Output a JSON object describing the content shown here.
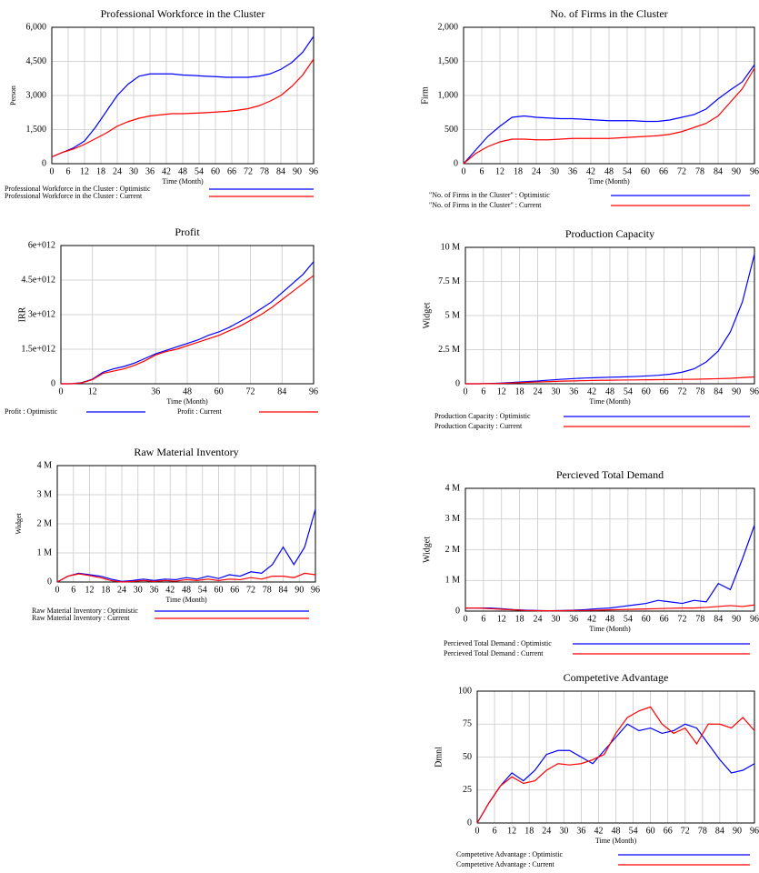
{
  "chart_data": [
    {
      "type": "line",
      "title": "Professional Workforce in the Cluster",
      "x_label": "Time (Month)",
      "y_label": "Person",
      "x": [
        0,
        4,
        8,
        12,
        16,
        20,
        24,
        28,
        32,
        36,
        40,
        44,
        48,
        52,
        56,
        60,
        64,
        68,
        72,
        76,
        80,
        84,
        88,
        92,
        96
      ],
      "xlim": [
        0,
        96
      ],
      "xticks": [
        0,
        6,
        12,
        18,
        24,
        30,
        36,
        42,
        48,
        54,
        60,
        66,
        72,
        78,
        84,
        90,
        96
      ],
      "ylim": [
        0,
        6000
      ],
      "yticks": [
        0,
        {
          "value": 1500,
          "label": "1,500"
        },
        {
          "value": 3000,
          "label": "3,000"
        },
        {
          "value": 4500,
          "label": "4,500"
        },
        {
          "value": 6000,
          "label": "6,000"
        }
      ],
      "grid": true,
      "series": [
        {
          "name": "Professional Workforce in the Cluster : Optimistic",
          "color": "#0000ff",
          "values": [
            300,
            500,
            700,
            1000,
            1600,
            2300,
            3000,
            3500,
            3850,
            3950,
            3950,
            3950,
            3900,
            3880,
            3850,
            3830,
            3800,
            3800,
            3800,
            3850,
            3950,
            4150,
            4450,
            4900,
            5600
          ]
        },
        {
          "name": "Professional Workforce in the Cluster : Current",
          "color": "#ff0000",
          "values": [
            300,
            500,
            650,
            850,
            1100,
            1350,
            1650,
            1850,
            2000,
            2100,
            2150,
            2200,
            2200,
            2220,
            2240,
            2270,
            2300,
            2350,
            2420,
            2550,
            2750,
            3000,
            3400,
            3900,
            4600
          ]
        }
      ]
    },
    {
      "type": "line",
      "title": "No. of Firms in the Cluster",
      "x_label": "Time (Month)",
      "y_label": "Firm",
      "x": [
        0,
        4,
        8,
        12,
        16,
        20,
        24,
        28,
        32,
        36,
        40,
        44,
        48,
        52,
        56,
        60,
        64,
        68,
        72,
        76,
        80,
        84,
        88,
        92,
        96
      ],
      "xlim": [
        0,
        96
      ],
      "xticks": [
        0,
        6,
        12,
        18,
        24,
        30,
        36,
        42,
        48,
        54,
        60,
        66,
        72,
        78,
        84,
        90,
        96
      ],
      "ylim": [
        0,
        2000
      ],
      "yticks": [
        0,
        500,
        {
          "value": 1000,
          "label": "1,000"
        },
        {
          "value": 1500,
          "label": "1,500"
        },
        {
          "value": 2000,
          "label": "2,000"
        }
      ],
      "grid": true,
      "series": [
        {
          "name": "\"No. of Firms in the Cluster\" : Optimistic",
          "color": "#0000ff",
          "values": [
            0,
            200,
            400,
            550,
            680,
            700,
            680,
            670,
            660,
            660,
            650,
            640,
            630,
            630,
            630,
            620,
            620,
            640,
            680,
            720,
            800,
            950,
            1080,
            1200,
            1450
          ]
        },
        {
          "name": "\"No. of Firms in the Cluster\" : Current",
          "color": "#ff0000",
          "values": [
            0,
            150,
            250,
            320,
            360,
            360,
            350,
            350,
            360,
            370,
            370,
            370,
            370,
            380,
            390,
            400,
            410,
            430,
            470,
            530,
            590,
            700,
            900,
            1100,
            1400
          ]
        }
      ]
    },
    {
      "type": "line",
      "title": "Profit",
      "x_label": "Time (Month)",
      "y_label": "IRR",
      "x": [
        0,
        4,
        8,
        12,
        16,
        20,
        24,
        28,
        32,
        36,
        40,
        44,
        48,
        52,
        56,
        60,
        64,
        68,
        72,
        76,
        80,
        84,
        88,
        92,
        96
      ],
      "xlim": [
        0,
        96
      ],
      "xticks": [
        0,
        12,
        36,
        48,
        60,
        72,
        84,
        96
      ],
      "ylim": [
        0,
        6000000000000.0
      ],
      "yticks": [
        0,
        {
          "value": 1500000000000.0,
          "label": "1.5e+012"
        },
        {
          "value": 3000000000000.0,
          "label": "3e+012"
        },
        {
          "value": 4500000000000.0,
          "label": "4.5e+012"
        },
        {
          "value": 6000000000000.0,
          "label": "6e+012"
        }
      ],
      "grid": true,
      "series": [
        {
          "name": "Profit : Optimistic",
          "color": "#0000ff",
          "values": [
            0,
            0,
            50000000000.0,
            200000000000.0,
            500000000000.0,
            650000000000.0,
            750000000000.0,
            900000000000.0,
            1100000000000.0,
            1300000000000.0,
            1450000000000.0,
            1600000000000.0,
            1750000000000.0,
            1900000000000.0,
            2100000000000.0,
            2250000000000.0,
            2450000000000.0,
            2700000000000.0,
            2950000000000.0,
            3250000000000.0,
            3550000000000.0,
            3950000000000.0,
            4350000000000.0,
            4750000000000.0,
            5300000000000.0
          ]
        },
        {
          "name": "Profit : Current",
          "color": "#ff0000",
          "values": [
            0,
            0,
            40000000000.0,
            180000000000.0,
            450000000000.0,
            550000000000.0,
            650000000000.0,
            800000000000.0,
            1000000000000.0,
            1250000000000.0,
            1400000000000.0,
            1500000000000.0,
            1650000000000.0,
            1800000000000.0,
            1950000000000.0,
            2100000000000.0,
            2300000000000.0,
            2500000000000.0,
            2750000000000.0,
            3000000000000.0,
            3300000000000.0,
            3650000000000.0,
            4000000000000.0,
            4350000000000.0,
            4700000000000.0
          ]
        }
      ]
    },
    {
      "type": "line",
      "title": "Production Capacity",
      "x_label": "Time (Month)",
      "y_label": "Widget",
      "x": [
        0,
        4,
        8,
        12,
        16,
        20,
        24,
        28,
        32,
        36,
        40,
        44,
        48,
        52,
        56,
        60,
        64,
        68,
        72,
        76,
        80,
        84,
        88,
        92,
        96
      ],
      "xlim": [
        0,
        96
      ],
      "xticks": [
        0,
        6,
        12,
        18,
        24,
        30,
        36,
        42,
        48,
        54,
        60,
        66,
        72,
        78,
        84,
        90,
        96
      ],
      "ylim": [
        0,
        10000000
      ],
      "yticks": [
        0,
        {
          "value": 2500000,
          "label": "2.5 M"
        },
        {
          "value": 5000000,
          "label": "5 M"
        },
        {
          "value": 7500000,
          "label": "7.5 M"
        },
        {
          "value": 10000000,
          "label": "10 M"
        }
      ],
      "grid": true,
      "series": [
        {
          "name": "Production Capacity : Optimistic",
          "color": "#0000ff",
          "values": [
            0,
            0,
            20000,
            50000,
            100000,
            150000,
            200000,
            270000,
            330000,
            380000,
            420000,
            450000,
            480000,
            500000,
            530000,
            570000,
            620000,
            700000,
            850000,
            1100000,
            1600000,
            2400000,
            3800000,
            6000000,
            9500000
          ]
        },
        {
          "name": "Production Capacity : Current",
          "color": "#ff0000",
          "values": [
            0,
            0,
            10000,
            30000,
            60000,
            100000,
            130000,
            160000,
            190000,
            210000,
            230000,
            250000,
            260000,
            270000,
            280000,
            290000,
            300000,
            310000,
            320000,
            330000,
            350000,
            370000,
            400000,
            450000,
            500000
          ]
        }
      ]
    },
    {
      "type": "line",
      "title": "Raw Material Inventory",
      "x_label": "Time (Month)",
      "y_label": "Widget",
      "x": [
        0,
        4,
        8,
        12,
        16,
        20,
        24,
        28,
        32,
        36,
        40,
        44,
        48,
        52,
        56,
        60,
        64,
        68,
        72,
        76,
        80,
        84,
        88,
        92,
        96
      ],
      "xlim": [
        0,
        96
      ],
      "xticks": [
        0,
        6,
        12,
        18,
        24,
        30,
        36,
        42,
        48,
        54,
        60,
        66,
        72,
        78,
        84,
        90,
        96
      ],
      "ylim": [
        0,
        4000000
      ],
      "yticks": [
        0,
        {
          "value": 1000000,
          "label": "1 M"
        },
        {
          "value": 2000000,
          "label": "2 M"
        },
        {
          "value": 3000000,
          "label": "3 M"
        },
        {
          "value": 4000000,
          "label": "4 M"
        }
      ],
      "grid": true,
      "series": [
        {
          "name": "Raw Material Inventory : Optimistic",
          "color": "#0000ff",
          "values": [
            0,
            200000,
            300000,
            250000,
            200000,
            100000,
            20000,
            50000,
            100000,
            50000,
            100000,
            80000,
            150000,
            100000,
            200000,
            120000,
            250000,
            200000,
            350000,
            300000,
            600000,
            1200000,
            600000,
            1200000,
            2500000
          ]
        },
        {
          "name": "Raw Material Inventory : Current",
          "color": "#ff0000",
          "values": [
            0,
            200000,
            280000,
            220000,
            150000,
            50000,
            0,
            20000,
            50000,
            20000,
            50000,
            30000,
            80000,
            50000,
            100000,
            50000,
            100000,
            80000,
            150000,
            100000,
            200000,
            200000,
            150000,
            300000,
            250000
          ]
        }
      ]
    },
    {
      "type": "line",
      "title": "Percieved Total Demand",
      "x_label": "Time (Month)",
      "y_label": "Widget",
      "x": [
        0,
        4,
        8,
        12,
        16,
        20,
        24,
        28,
        32,
        36,
        40,
        44,
        48,
        52,
        56,
        60,
        64,
        68,
        72,
        76,
        80,
        84,
        88,
        92,
        96
      ],
      "xlim": [
        0,
        96
      ],
      "xticks": [
        0,
        6,
        12,
        18,
        24,
        30,
        36,
        42,
        48,
        54,
        60,
        66,
        72,
        78,
        84,
        90,
        96
      ],
      "ylim": [
        0,
        4000000
      ],
      "yticks": [
        0,
        {
          "value": 1000000,
          "label": "1 M"
        },
        {
          "value": 2000000,
          "label": "2 M"
        },
        {
          "value": 3000000,
          "label": "3 M"
        },
        {
          "value": 4000000,
          "label": "4 M"
        }
      ],
      "grid": true,
      "series": [
        {
          "name": "Percieved Total Demand : Optimistic",
          "color": "#0000ff",
          "values": [
            100000,
            100000,
            100000,
            80000,
            50000,
            30000,
            20000,
            10000,
            20000,
            30000,
            50000,
            80000,
            100000,
            150000,
            200000,
            250000,
            350000,
            300000,
            250000,
            350000,
            300000,
            900000,
            700000,
            1700000,
            2800000
          ]
        },
        {
          "name": "Percieved Total Demand : Current",
          "color": "#ff0000",
          "values": [
            100000,
            100000,
            80000,
            60000,
            40000,
            20000,
            10000,
            10000,
            10000,
            20000,
            20000,
            30000,
            40000,
            50000,
            60000,
            70000,
            80000,
            90000,
            100000,
            100000,
            120000,
            150000,
            180000,
            150000,
            200000
          ]
        }
      ]
    },
    {
      "type": "line",
      "title": "Competetive Advantage",
      "x_label": "Time (Month)",
      "y_label": "Dmnl",
      "x": [
        0,
        4,
        8,
        12,
        16,
        20,
        24,
        28,
        32,
        36,
        40,
        44,
        48,
        52,
        56,
        60,
        64,
        68,
        72,
        76,
        80,
        84,
        88,
        92,
        96
      ],
      "xlim": [
        0,
        96
      ],
      "xticks": [
        0,
        6,
        12,
        18,
        24,
        30,
        36,
        42,
        48,
        54,
        60,
        66,
        72,
        78,
        84,
        90,
        96
      ],
      "ylim": [
        0,
        100
      ],
      "yticks": [
        0,
        25,
        50,
        75,
        100
      ],
      "grid": true,
      "series": [
        {
          "name": "Competetive Advantage : Optimistic",
          "color": "#0000ff",
          "values": [
            0,
            15,
            28,
            38,
            32,
            40,
            52,
            55,
            55,
            50,
            45,
            55,
            65,
            75,
            70,
            72,
            68,
            70,
            75,
            72,
            60,
            48,
            38,
            40,
            45
          ]
        },
        {
          "name": "Competetive Advantage : Current",
          "color": "#ff0000",
          "values": [
            0,
            15,
            28,
            35,
            30,
            32,
            40,
            45,
            44,
            45,
            48,
            52,
            68,
            80,
            85,
            88,
            75,
            68,
            72,
            60,
            75,
            75,
            72,
            80,
            70
          ]
        }
      ]
    }
  ]
}
